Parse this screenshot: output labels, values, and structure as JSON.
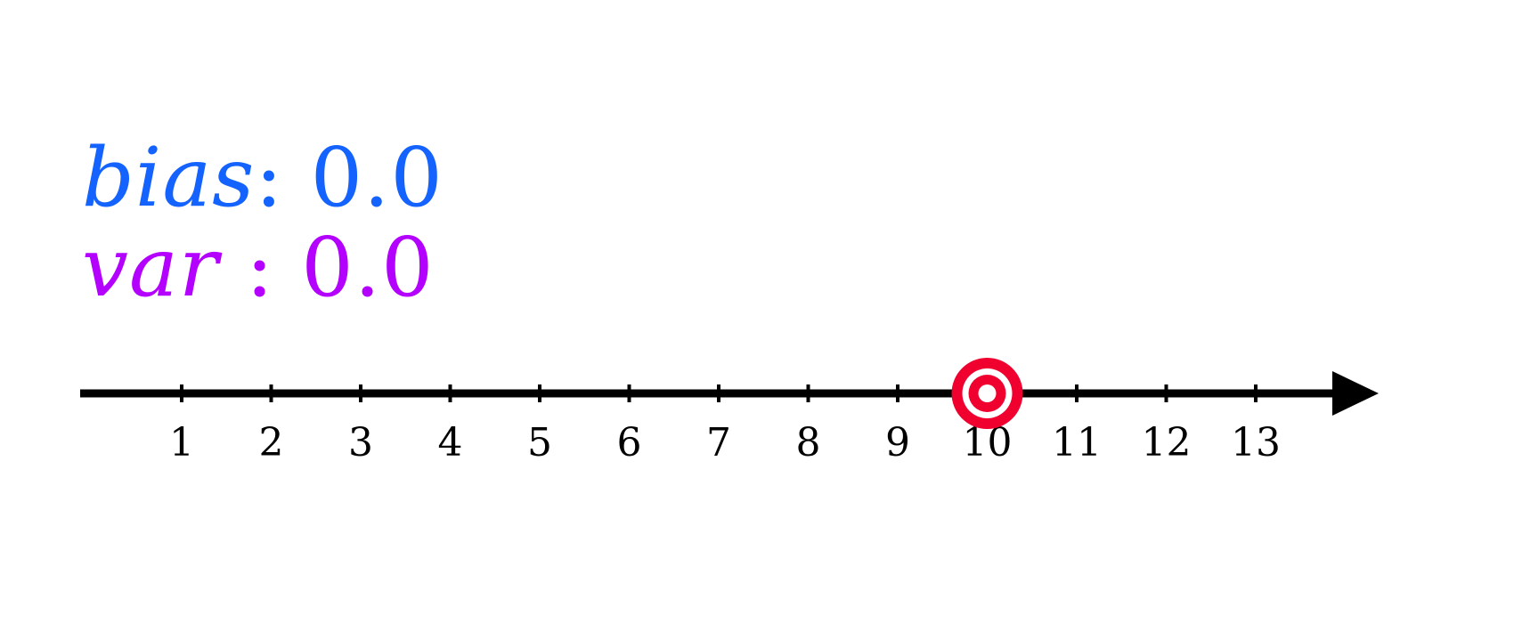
{
  "stats": {
    "bias": {
      "label": "bias",
      "value": "0.0",
      "color": "#1463ff"
    },
    "var": {
      "label": "var",
      "value": "0.0",
      "color": "#b300ff"
    }
  },
  "axis": {
    "ticks": [
      1,
      2,
      3,
      4,
      5,
      6,
      7,
      8,
      9,
      10,
      11,
      12,
      13
    ],
    "tick_labels": [
      "1",
      "2",
      "3",
      "4",
      "5",
      "6",
      "7",
      "8",
      "9",
      "10",
      "11",
      "12",
      "13"
    ],
    "range": [
      -0.1,
      13.8
    ],
    "color": "#000000",
    "arrow_direction": "right"
  },
  "target": {
    "value": 10,
    "icon": "bullseye-icon",
    "color": "#f0002e"
  }
}
